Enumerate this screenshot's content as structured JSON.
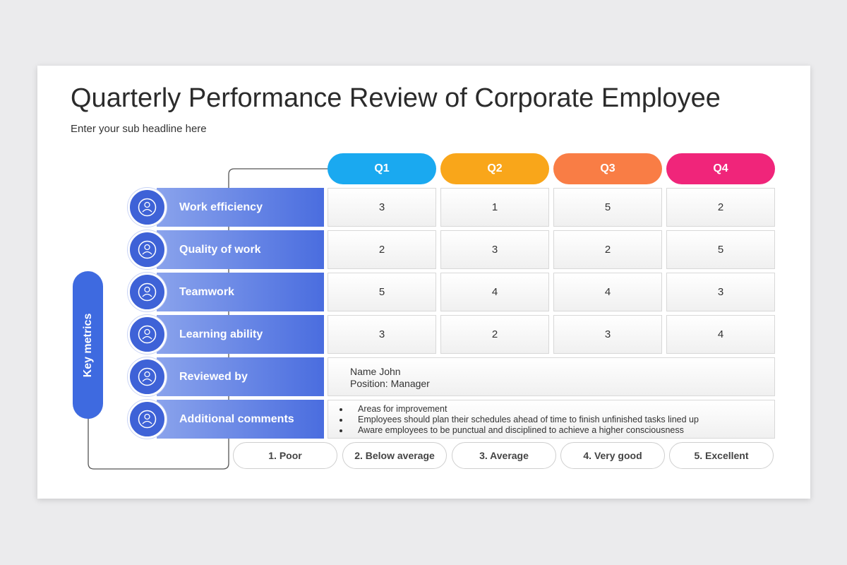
{
  "header": {
    "title": "Quarterly Performance Review of Corporate Employee",
    "subtitle": "Enter your sub headline here"
  },
  "side_label": "Key metrics",
  "quarters": [
    "Q1",
    "Q2",
    "Q3",
    "Q4"
  ],
  "metrics": [
    {
      "label": "Work efficiency",
      "values": [
        3,
        1,
        5,
        2
      ]
    },
    {
      "label": "Quality of work",
      "values": [
        2,
        3,
        2,
        5
      ]
    },
    {
      "label": "Teamwork",
      "values": [
        5,
        4,
        4,
        3
      ]
    },
    {
      "label": "Learning ability",
      "values": [
        3,
        2,
        3,
        4
      ]
    }
  ],
  "reviewed_by": {
    "label": "Reviewed by",
    "lines": [
      "Name John",
      "Position: Manager"
    ]
  },
  "additional_comments": {
    "label": "Additional comments",
    "items": [
      "Areas for improvement",
      "Employees should plan their schedules ahead of time to finish unfinished tasks lined up",
      "Aware employees to be punctual and disciplined to achieve a higher consciousness"
    ]
  },
  "scale": [
    "1. Poor",
    "2. Below average",
    "3. Average",
    "4. Very good",
    "5. Excellent"
  ]
}
